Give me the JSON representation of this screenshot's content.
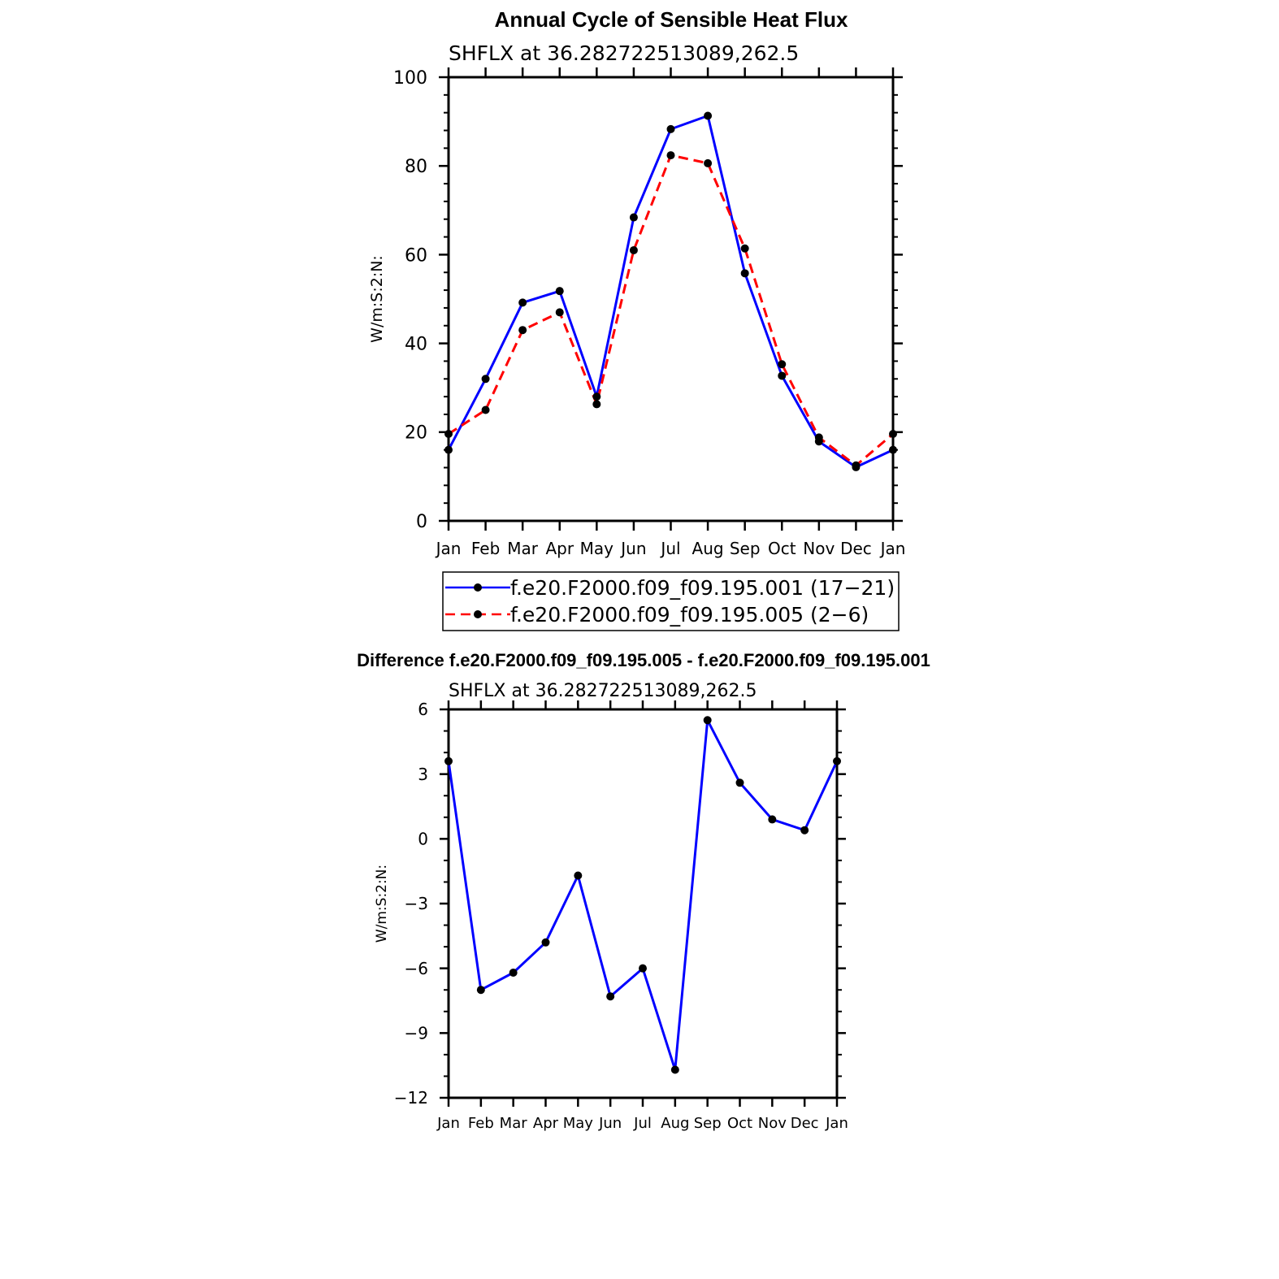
{
  "chart_data": [
    {
      "type": "line",
      "title": "Annual Cycle of Sensible Heat Flux",
      "subtitle": "SHFLX  at  36.282722513089,262.5",
      "xlabel": "",
      "ylabel": "W/m:S:2:N:",
      "categories": [
        "Jan",
        "Feb",
        "Mar",
        "Apr",
        "May",
        "Jun",
        "Jul",
        "Aug",
        "Sep",
        "Oct",
        "Nov",
        "Dec",
        "Jan"
      ],
      "ylim": [
        0,
        100
      ],
      "yticks": [
        0,
        20,
        40,
        60,
        80,
        100
      ],
      "grid": false,
      "legend_position": "bottom",
      "series": [
        {
          "name": "f.e20.F2000.f09_f09.195.001 (17−21)",
          "color": "#0000ff",
          "style": "solid",
          "values": [
            16.0,
            32.0,
            49.2,
            51.8,
            28.0,
            68.4,
            88.3,
            91.3,
            55.8,
            32.7,
            17.9,
            12.1,
            16.0
          ]
        },
        {
          "name": "f.e20.F2000.f09_f09.195.005 (2−6)",
          "color": "#ff0000",
          "style": "dashed",
          "values": [
            19.6,
            25.0,
            43.0,
            47.0,
            26.3,
            61.0,
            82.4,
            80.6,
            61.4,
            35.3,
            18.8,
            12.5,
            19.6
          ]
        }
      ]
    },
    {
      "type": "line",
      "title": "Difference f.e20.F2000.f09_f09.195.005 - f.e20.F2000.f09_f09.195.001",
      "subtitle": "SHFLX  at  36.282722513089,262.5",
      "xlabel": "",
      "ylabel": "W/m:S:2:N:",
      "categories": [
        "Jan",
        "Feb",
        "Mar",
        "Apr",
        "May",
        "Jun",
        "Jul",
        "Aug",
        "Sep",
        "Oct",
        "Nov",
        "Dec",
        "Jan"
      ],
      "ylim": [
        -12,
        6
      ],
      "yticks": [
        -12,
        -9,
        -6,
        -3,
        0,
        3,
        6
      ],
      "ytick_labels": [
        "−12",
        "−9",
        "−6",
        "−3",
        "0",
        "3",
        "6"
      ],
      "grid": false,
      "series": [
        {
          "color": "#0000ff",
          "style": "solid",
          "values": [
            3.6,
            -7.0,
            -6.2,
            -4.8,
            -1.7,
            -7.3,
            -6.0,
            -10.7,
            5.5,
            2.6,
            0.9,
            0.4,
            3.6
          ]
        }
      ]
    }
  ]
}
